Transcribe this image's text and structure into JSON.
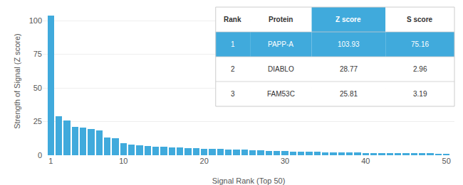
{
  "chart_data": {
    "type": "bar",
    "xlabel": "Signal Rank (Top 50)",
    "ylabel": "Strength of Signal (Z score)",
    "x": [
      1,
      2,
      3,
      4,
      5,
      6,
      7,
      8,
      9,
      10,
      11,
      12,
      13,
      14,
      15,
      16,
      17,
      18,
      19,
      20,
      21,
      22,
      23,
      24,
      25,
      26,
      27,
      28,
      29,
      30,
      31,
      32,
      33,
      34,
      35,
      36,
      37,
      38,
      39,
      40,
      41,
      42,
      43,
      44,
      45,
      46,
      47,
      48,
      49,
      50
    ],
    "values": [
      103.93,
      28.77,
      25.81,
      21.0,
      20.5,
      19.5,
      18.5,
      13.0,
      12.5,
      9.0,
      8.0,
      7.5,
      7.0,
      6.5,
      6.2,
      6.0,
      5.8,
      5.5,
      5.2,
      5.0,
      4.8,
      4.5,
      4.3,
      4.1,
      4.0,
      3.8,
      3.6,
      3.4,
      3.2,
      3.0,
      2.8,
      2.6,
      2.5,
      2.4,
      2.3,
      2.2,
      2.1,
      2.0,
      1.9,
      1.8,
      1.7,
      1.65,
      1.6,
      1.55,
      1.5,
      1.45,
      1.4,
      1.35,
      1.3,
      1.25
    ],
    "color": "#40AADC",
    "xlim": [
      0,
      51
    ],
    "xticks": [
      1,
      10,
      20,
      30,
      40,
      50
    ],
    "ylim": [
      0,
      110
    ],
    "yticks": [
      0,
      25,
      50,
      75,
      100
    ],
    "grid": true,
    "table": {
      "headers": [
        "Rank",
        "Protein",
        "Z score",
        "S score"
      ],
      "rows": [
        [
          "1",
          "PAPP-A",
          "103.93",
          "75.16"
        ],
        [
          "2",
          "DIABLO",
          "28.77",
          "2.96"
        ],
        [
          "3",
          "FAM53C",
          "25.81",
          "3.19"
        ]
      ]
    }
  }
}
